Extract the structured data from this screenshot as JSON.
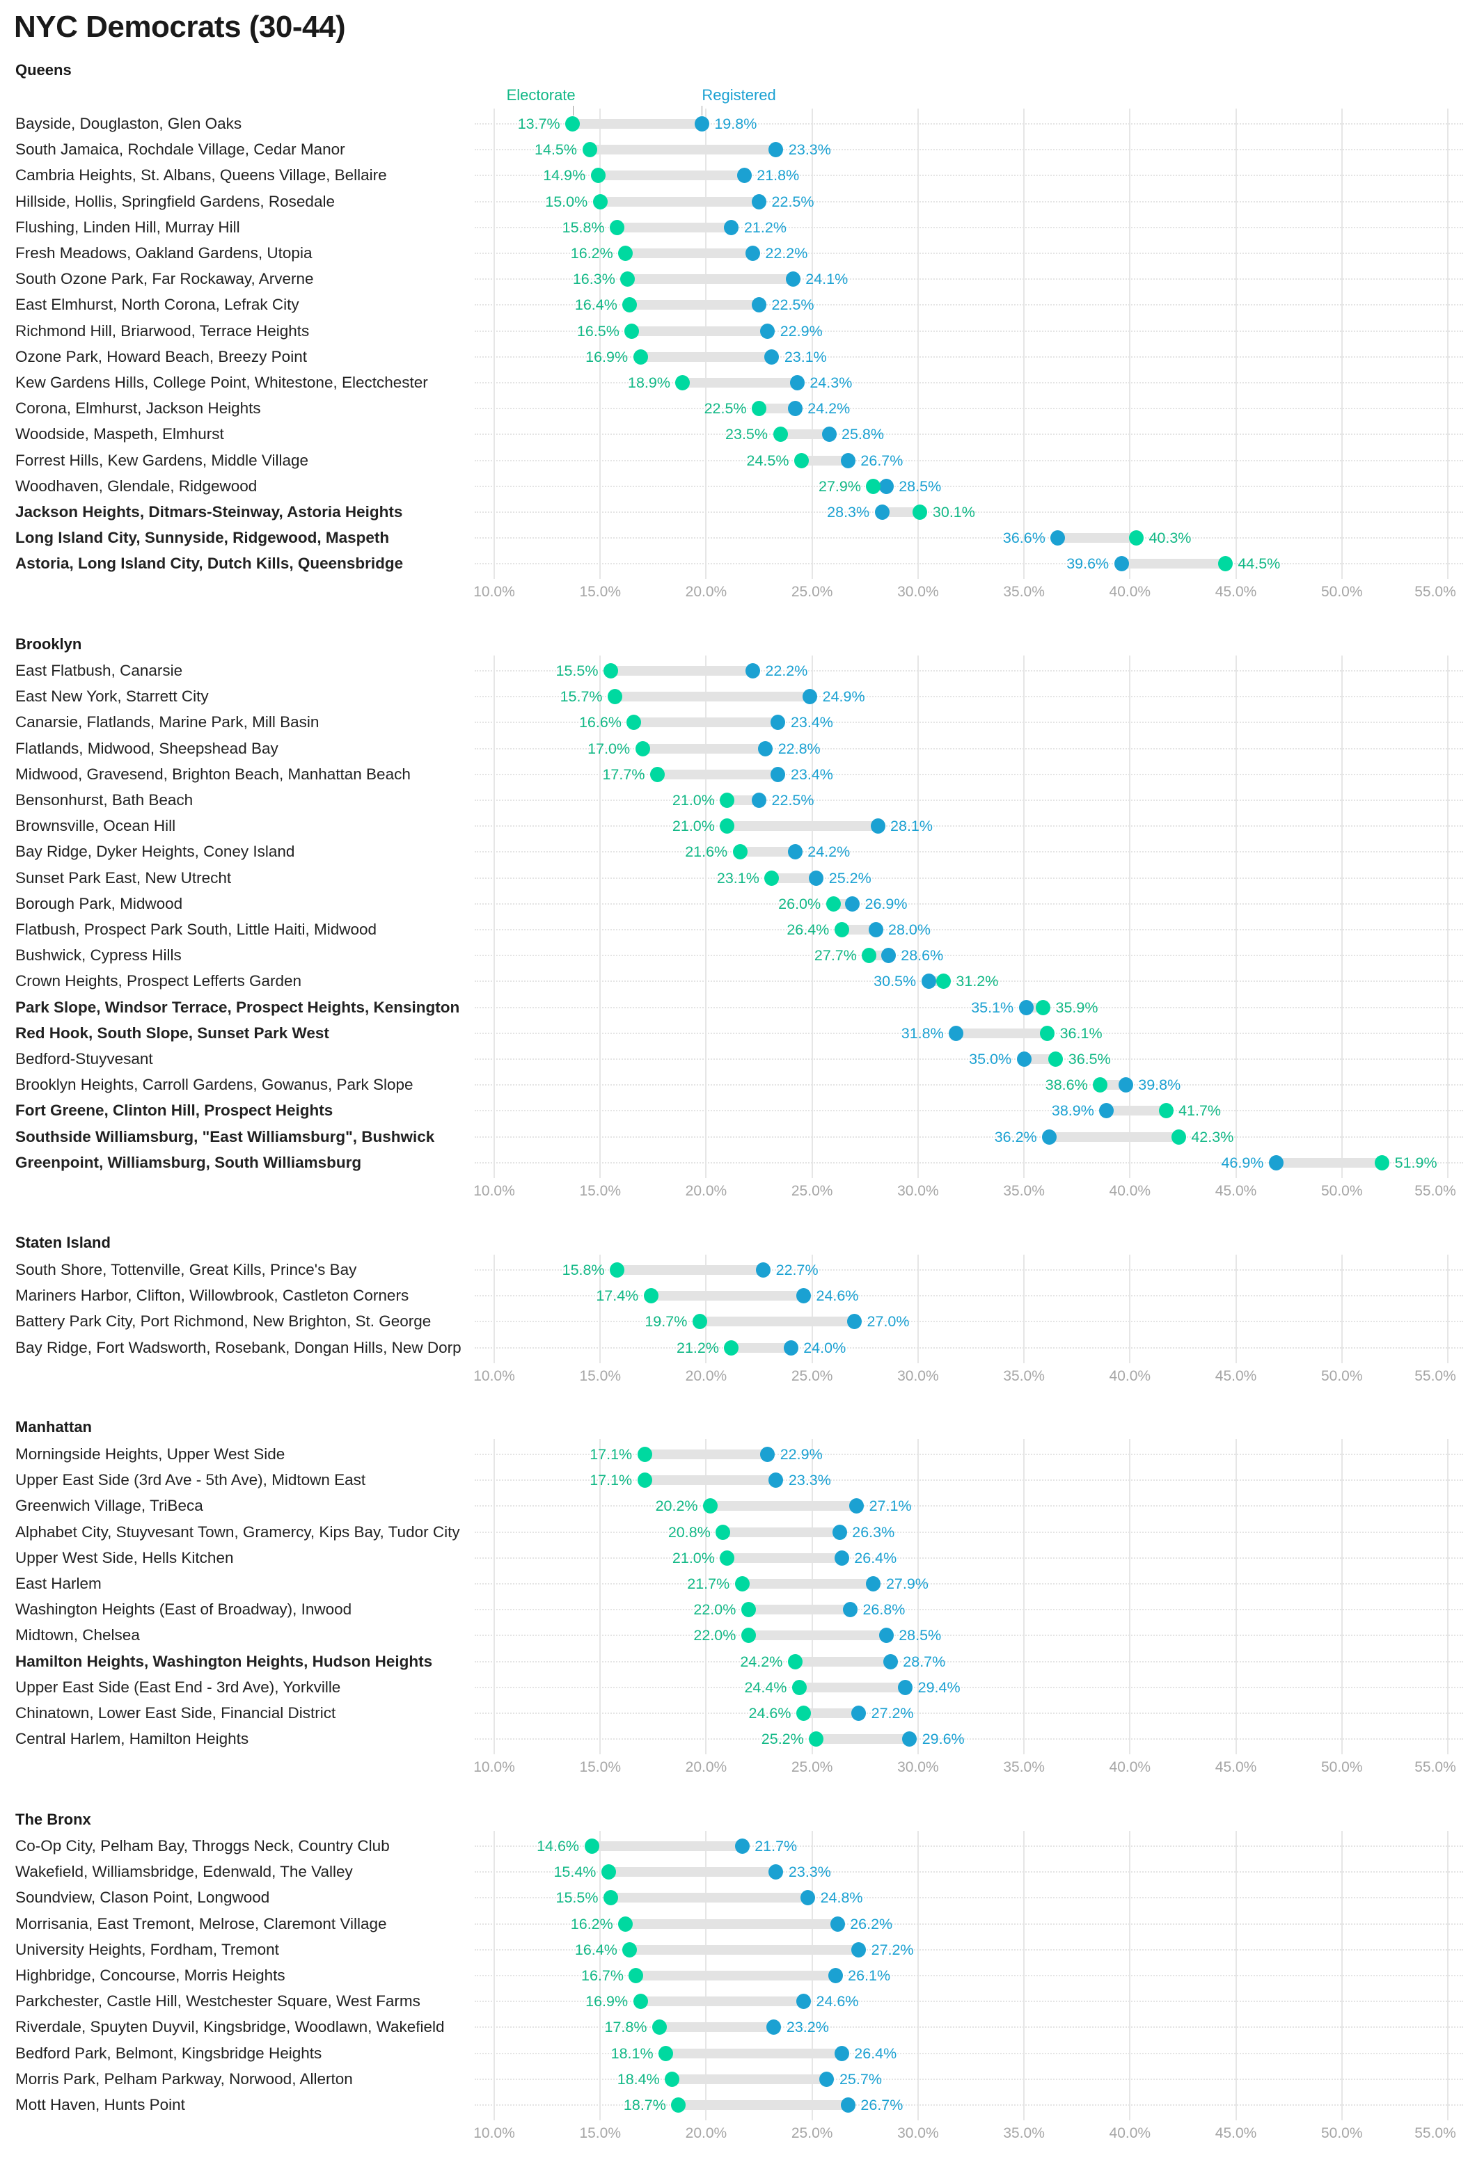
{
  "title": "NYC Democrats (30-44)",
  "colors": {
    "electorate": "#00d9a0",
    "electorate_text": "#12b886",
    "registered": "#1ba1d2",
    "registered_text": "#1ba1d2"
  },
  "legend": {
    "electorate": "Electorate",
    "registered": "Registered"
  },
  "chart_data": {
    "type": "dumbbell",
    "title": "NYC Democrats (30-44)",
    "series_names": [
      "Electorate",
      "Registered"
    ],
    "xlim": [
      10,
      55
    ],
    "x_ticks": [
      "10.0%",
      "15.0%",
      "20.0%",
      "25.0%",
      "30.0%",
      "35.0%",
      "40.0%",
      "45.0%",
      "50.0%",
      "55.0%"
    ],
    "grid": true,
    "sections": [
      {
        "name": "Queens",
        "rows": [
          {
            "label": "Bayside, Douglaston, Glen Oaks",
            "electorate": 13.7,
            "registered": 19.8
          },
          {
            "label": "South Jamaica, Rochdale Village, Cedar Manor",
            "electorate": 14.5,
            "registered": 23.3
          },
          {
            "label": "Cambria Heights, St. Albans, Queens Village, Bellaire",
            "electorate": 14.9,
            "registered": 21.8
          },
          {
            "label": "Hillside, Hollis, Springfield Gardens, Rosedale",
            "electorate": 15.0,
            "registered": 22.5
          },
          {
            "label": "Flushing, Linden Hill, Murray Hill",
            "electorate": 15.8,
            "registered": 21.2
          },
          {
            "label": "Fresh Meadows, Oakland Gardens, Utopia",
            "electorate": 16.2,
            "registered": 22.2
          },
          {
            "label": "South Ozone Park, Far Rockaway, Arverne",
            "electorate": 16.3,
            "registered": 24.1
          },
          {
            "label": "East Elmhurst, North Corona, Lefrak City",
            "electorate": 16.4,
            "registered": 22.5
          },
          {
            "label": "Richmond Hill, Briarwood, Terrace Heights",
            "electorate": 16.5,
            "registered": 22.9
          },
          {
            "label": "Ozone Park, Howard Beach, Breezy Point",
            "electorate": 16.9,
            "registered": 23.1
          },
          {
            "label": "Kew Gardens Hills, College Point, Whitestone, Electchester",
            "electorate": 18.9,
            "registered": 24.3
          },
          {
            "label": "Corona, Elmhurst, Jackson Heights",
            "electorate": 22.5,
            "registered": 24.2
          },
          {
            "label": "Woodside, Maspeth, Elmhurst",
            "electorate": 23.5,
            "registered": 25.8
          },
          {
            "label": "Forrest Hills, Kew Gardens, Middle Village",
            "electorate": 24.5,
            "registered": 26.7
          },
          {
            "label": "Woodhaven, Glendale, Ridgewood",
            "electorate": 27.9,
            "registered": 28.5
          },
          {
            "label": "Jackson Heights, Ditmars-Steinway, Astoria Heights",
            "electorate": 30.1,
            "registered": 28.3,
            "bold": true
          },
          {
            "label": "Long Island City, Sunnyside, Ridgewood, Maspeth",
            "electorate": 40.3,
            "registered": 36.6,
            "bold": true
          },
          {
            "label": "Astoria, Long Island City, Dutch Kills, Queensbridge",
            "electorate": 44.5,
            "registered": 39.6,
            "bold": true
          }
        ]
      },
      {
        "name": "Brooklyn",
        "rows": [
          {
            "label": "East Flatbush, Canarsie",
            "electorate": 15.5,
            "registered": 22.2
          },
          {
            "label": "East New York, Starrett City",
            "electorate": 15.7,
            "registered": 24.9
          },
          {
            "label": "Canarsie, Flatlands, Marine Park, Mill Basin",
            "electorate": 16.6,
            "registered": 23.4
          },
          {
            "label": "Flatlands, Midwood, Sheepshead Bay",
            "electorate": 17.0,
            "registered": 22.8
          },
          {
            "label": "Midwood, Gravesend, Brighton Beach, Manhattan Beach",
            "electorate": 17.7,
            "registered": 23.4
          },
          {
            "label": "Bensonhurst, Bath Beach",
            "electorate": 21.0,
            "registered": 22.5
          },
          {
            "label": "Brownsville, Ocean Hill",
            "electorate": 21.0,
            "registered": 28.1
          },
          {
            "label": "Bay Ridge, Dyker Heights, Coney Island",
            "electorate": 21.6,
            "registered": 24.2
          },
          {
            "label": "Sunset Park East, New Utrecht",
            "electorate": 23.1,
            "registered": 25.2
          },
          {
            "label": "Borough Park, Midwood",
            "electorate": 26.0,
            "registered": 26.9
          },
          {
            "label": "Flatbush, Prospect Park South, Little Haiti, Midwood",
            "electorate": 26.4,
            "registered": 28.0
          },
          {
            "label": "Bushwick, Cypress Hills",
            "electorate": 27.7,
            "registered": 28.6
          },
          {
            "label": "Crown Heights, Prospect Lefferts Garden",
            "electorate": 31.2,
            "registered": 30.5
          },
          {
            "label": "Park Slope, Windsor Terrace, Prospect Heights, Kensington",
            "electorate": 35.9,
            "registered": 35.1,
            "bold": true
          },
          {
            "label": "Red Hook, South Slope, Sunset Park West",
            "electorate": 36.1,
            "registered": 31.8,
            "bold": true
          },
          {
            "label": "Bedford-Stuyvesant",
            "electorate": 36.5,
            "registered": 35.0
          },
          {
            "label": "Brooklyn Heights, Carroll Gardens, Gowanus, Park Slope",
            "electorate": 38.6,
            "registered": 39.8
          },
          {
            "label": "Fort Greene, Clinton Hill, Prospect Heights",
            "electorate": 41.7,
            "registered": 38.9,
            "bold": true
          },
          {
            "label": "Southside Williamsburg, \"East Williamsburg\", Bushwick",
            "electorate": 42.3,
            "registered": 36.2,
            "bold": true
          },
          {
            "label": "Greenpoint, Williamsburg, South Williamsburg",
            "electorate": 51.9,
            "registered": 46.9,
            "bold": true
          }
        ]
      },
      {
        "name": "Staten Island",
        "rows": [
          {
            "label": "South Shore, Tottenville, Great Kills, Prince's Bay",
            "electorate": 15.8,
            "registered": 22.7
          },
          {
            "label": "Mariners Harbor, Clifton, Willowbrook, Castleton Corners",
            "electorate": 17.4,
            "registered": 24.6
          },
          {
            "label": "Battery Park City, Port Richmond, New Brighton, St. George",
            "electorate": 19.7,
            "registered": 27.0
          },
          {
            "label": "Bay Ridge, Fort Wadsworth, Rosebank, Dongan Hills, New Dorp",
            "electorate": 21.2,
            "registered": 24.0
          }
        ]
      },
      {
        "name": "Manhattan",
        "rows": [
          {
            "label": "Morningside Heights, Upper West Side",
            "electorate": 17.1,
            "registered": 22.9
          },
          {
            "label": "Upper East Side (3rd Ave - 5th Ave), Midtown East",
            "electorate": 17.1,
            "registered": 23.3
          },
          {
            "label": "Greenwich Village, TriBeca",
            "electorate": 20.2,
            "registered": 27.1
          },
          {
            "label": "Alphabet City, Stuyvesant Town, Gramercy, Kips Bay, Tudor City",
            "electorate": 20.8,
            "registered": 26.3
          },
          {
            "label": "Upper West Side, Hells Kitchen",
            "electorate": 21.0,
            "registered": 26.4
          },
          {
            "label": "East Harlem",
            "electorate": 21.7,
            "registered": 27.9
          },
          {
            "label": "Washington Heights (East of Broadway), Inwood",
            "electorate": 22.0,
            "registered": 26.8
          },
          {
            "label": "Midtown, Chelsea",
            "electorate": 22.0,
            "registered": 28.5
          },
          {
            "label": "Hamilton Heights, Washington Heights, Hudson Heights",
            "electorate": 24.2,
            "registered": 28.7,
            "bold": true
          },
          {
            "label": "Upper East Side (East End - 3rd Ave), Yorkville",
            "electorate": 24.4,
            "registered": 29.4
          },
          {
            "label": "Chinatown, Lower East Side, Financial District",
            "electorate": 24.6,
            "registered": 27.2
          },
          {
            "label": "Central Harlem, Hamilton Heights",
            "electorate": 25.2,
            "registered": 29.6
          }
        ]
      },
      {
        "name": "The Bronx",
        "rows": [
          {
            "label": "Co-Op City, Pelham Bay, Throggs Neck, Country Club",
            "electorate": 14.6,
            "registered": 21.7
          },
          {
            "label": "Wakefield, Williamsbridge, Edenwald, The Valley",
            "electorate": 15.4,
            "registered": 23.3
          },
          {
            "label": "Soundview, Clason Point, Longwood",
            "electorate": 15.5,
            "registered": 24.8
          },
          {
            "label": "Morrisania, East Tremont, Melrose, Claremont Village",
            "electorate": 16.2,
            "registered": 26.2
          },
          {
            "label": "University Heights, Fordham, Tremont",
            "electorate": 16.4,
            "registered": 27.2
          },
          {
            "label": "Highbridge, Concourse, Morris Heights",
            "electorate": 16.7,
            "registered": 26.1
          },
          {
            "label": "Parkchester, Castle Hill, Westchester Square, West Farms",
            "electorate": 16.9,
            "registered": 24.6
          },
          {
            "label": "Riverdale, Spuyten Duyvil, Kingsbridge, Woodlawn, Wakefield",
            "electorate": 17.8,
            "registered": 23.2
          },
          {
            "label": "Bedford Park, Belmont, Kingsbridge Heights",
            "electorate": 18.1,
            "registered": 26.4
          },
          {
            "label": "Morris Park, Pelham Parkway, Norwood, Allerton",
            "electorate": 18.4,
            "registered": 25.7
          },
          {
            "label": "Mott Haven, Hunts Point",
            "electorate": 18.7,
            "registered": 26.7
          }
        ]
      }
    ]
  }
}
